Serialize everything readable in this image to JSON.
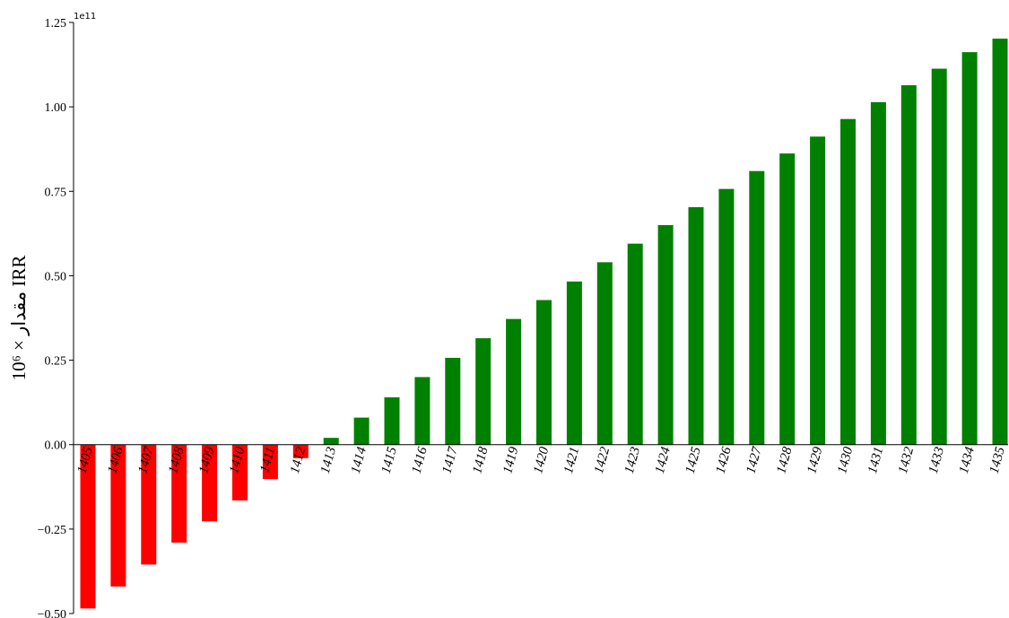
{
  "chart_data": {
    "type": "bar",
    "categories": [
      "1405",
      "1406",
      "1407",
      "1408",
      "1409",
      "1410",
      "1411",
      "1412",
      "1413",
      "1414",
      "1415",
      "1416",
      "1417",
      "1418",
      "1419",
      "1420",
      "1421",
      "1422",
      "1423",
      "1424",
      "1425",
      "1426",
      "1427",
      "1428",
      "1429",
      "1430",
      "1431",
      "1432",
      "1433",
      "1434",
      "1435"
    ],
    "values": [
      -48500000000,
      -42000000000,
      -35500000000,
      -29000000000,
      -22700000000,
      -16500000000,
      -10200000000,
      -4000000000,
      2000000000,
      8000000000,
      14000000000,
      20000000000,
      25700000000,
      31500000000,
      37200000000,
      42800000000,
      48300000000,
      54000000000,
      59500000000,
      65000000000,
      70300000000,
      75700000000,
      81000000000,
      86200000000,
      91200000000,
      96400000000,
      101400000000,
      106400000000,
      111300000000,
      116200000000,
      120200000000
    ],
    "ylabel": "مقدار × 10⁶ IRR",
    "yexponent": "1e11",
    "ylim": [
      -50000000000,
      125000000000
    ],
    "yticks": [
      -50000000000,
      -25000000000,
      0,
      25000000000,
      50000000000,
      75000000000,
      100000000000,
      125000000000
    ],
    "ytick_labels": [
      "−0.50",
      "−0.25",
      "0.00",
      "0.25",
      "0.50",
      "0.75",
      "1.00",
      "1.25"
    ],
    "colors": {
      "negative": "#ff0000",
      "positive": "#008000"
    },
    "grid": false
  }
}
